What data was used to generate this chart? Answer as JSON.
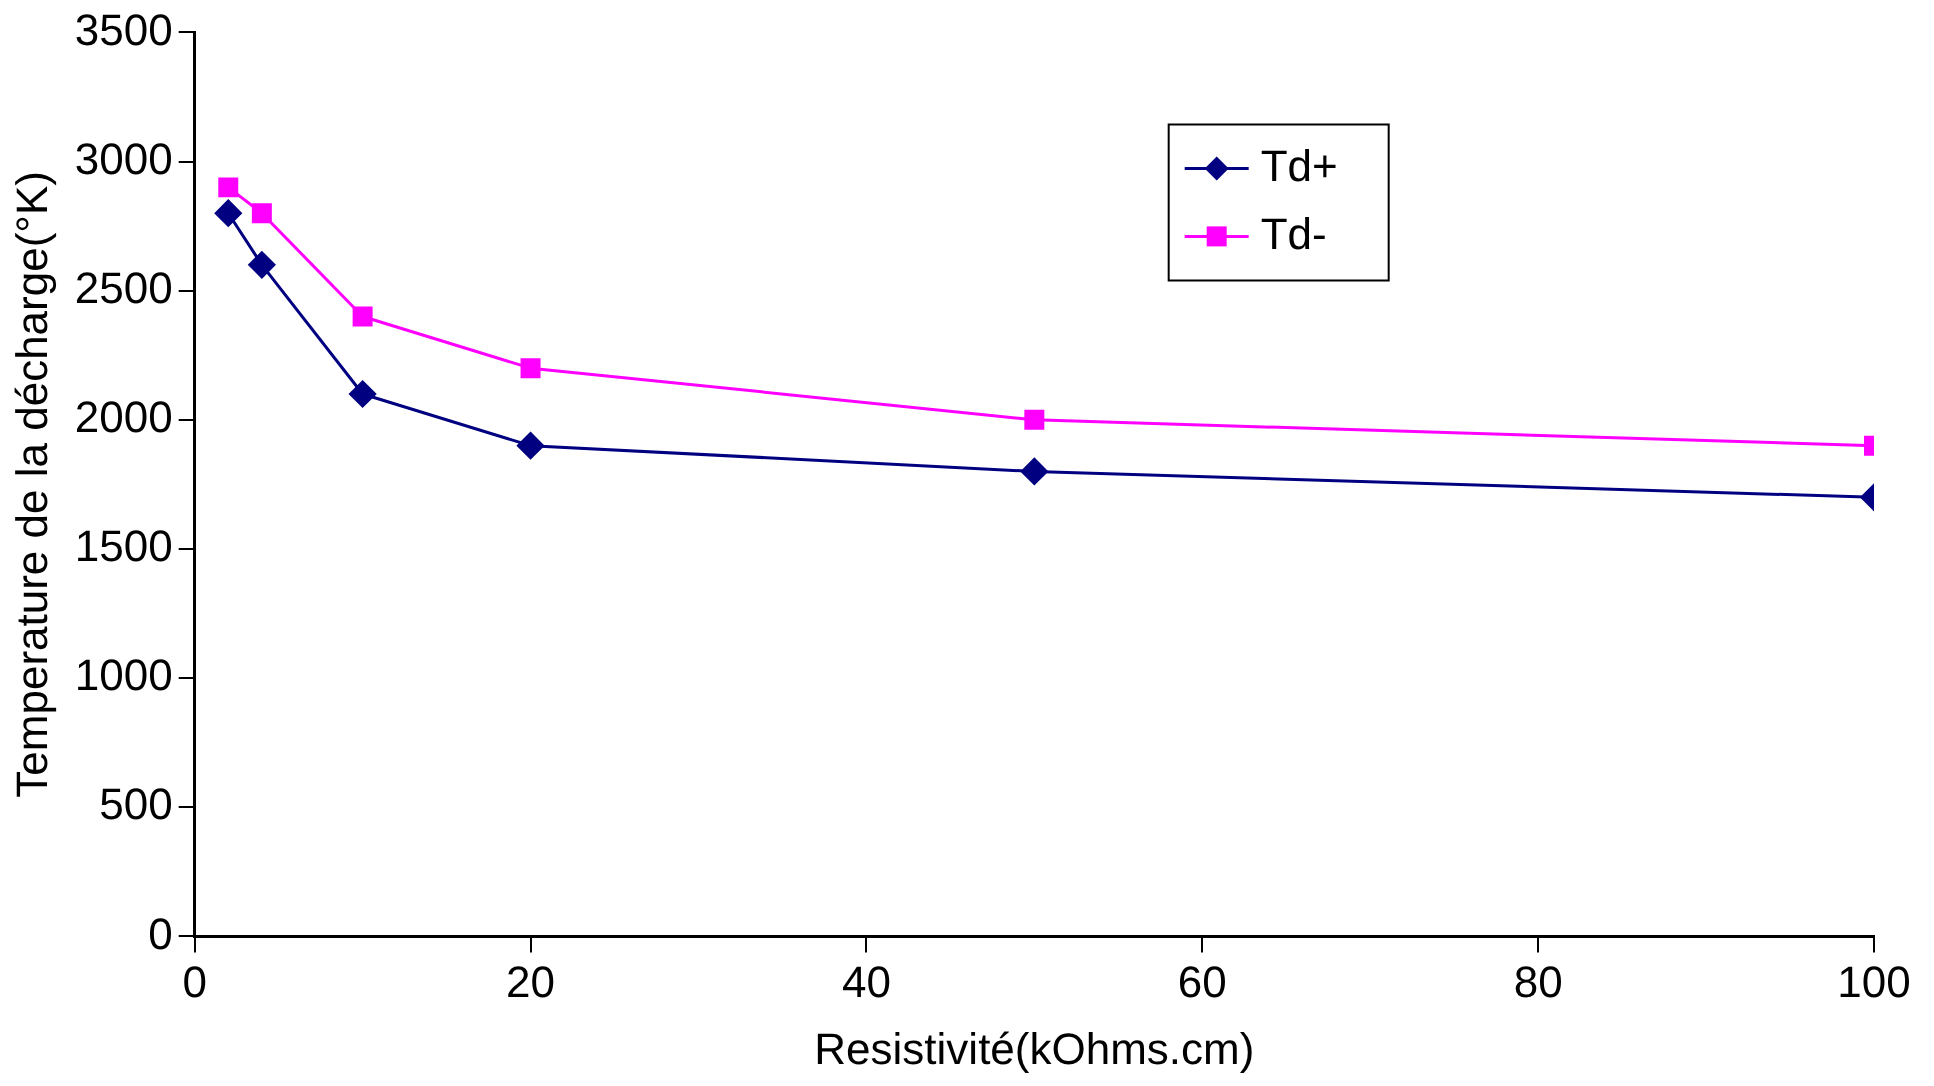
{
  "chart_data": {
    "type": "line",
    "xlabel": "Resistivité(kOhms.cm)",
    "ylabel": "Temperature de la décharge(°K)",
    "x": [
      2,
      4,
      10,
      20,
      50,
      100
    ],
    "series": [
      {
        "name": "Td+",
        "color": "#000080",
        "marker": "diamond",
        "values": [
          2800,
          2600,
          2100,
          1900,
          1800,
          1700
        ]
      },
      {
        "name": "Td-",
        "color": "#ff00ff",
        "marker": "square",
        "values": [
          2900,
          2800,
          2400,
          2200,
          2000,
          1900
        ]
      }
    ],
    "xlim": [
      0,
      100
    ],
    "xticks": [
      0,
      20,
      40,
      60,
      80,
      100
    ],
    "ylim": [
      0,
      3500
    ],
    "yticks": [
      0,
      500,
      1000,
      1500,
      2000,
      2500,
      3000,
      3500
    ],
    "grid": false,
    "legend": "top right"
  }
}
